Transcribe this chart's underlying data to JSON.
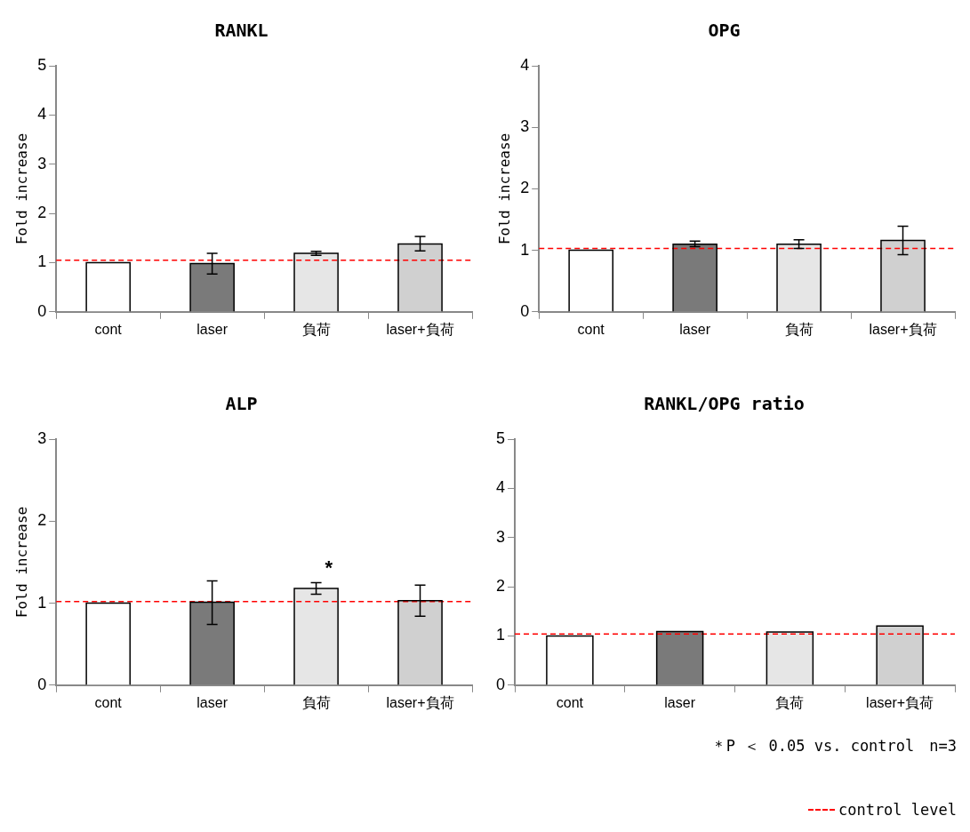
{
  "chart_data": [
    {
      "type": "bar",
      "title": "RANKL",
      "ylabel": "Fold increase",
      "categories": [
        "cont",
        "laser",
        "負荷",
        "laser+負荷"
      ],
      "values": [
        1.0,
        0.98,
        1.19,
        1.38
      ],
      "errors": [
        null,
        [
          0.77,
          1.19
        ],
        [
          1.15,
          1.23
        ],
        [
          1.24,
          1.53
        ]
      ],
      "colors": [
        "#ffffff",
        "#7a7a7a",
        "#e6e6e6",
        "#d0d0d0"
      ],
      "ylim": [
        0,
        5
      ],
      "yticks": [
        0,
        1,
        2,
        3,
        4,
        5
      ],
      "grid": false,
      "legend": false,
      "ref_lines": [
        {
          "axis": "y",
          "value": 1.05,
          "color": "#ff0000",
          "line_style": "dashed"
        }
      ]
    },
    {
      "type": "bar",
      "title": "OPG",
      "ylabel": "Fold increase",
      "categories": [
        "cont",
        "laser",
        "負荷",
        "laser+負荷"
      ],
      "values": [
        1.0,
        1.1,
        1.1,
        1.16
      ],
      "errors": [
        null,
        [
          1.06,
          1.15
        ],
        [
          1.03,
          1.17
        ],
        [
          0.93,
          1.39
        ]
      ],
      "colors": [
        "#ffffff",
        "#7a7a7a",
        "#e6e6e6",
        "#d0d0d0"
      ],
      "ylim": [
        0,
        4
      ],
      "yticks": [
        0,
        1,
        2,
        3,
        4
      ],
      "grid": false,
      "legend": false,
      "ref_lines": [
        {
          "axis": "y",
          "value": 1.03,
          "color": "#ff0000",
          "line_style": "dashed"
        }
      ]
    },
    {
      "type": "bar",
      "title": "ALP",
      "ylabel": "Fold increase",
      "categories": [
        "cont",
        "laser",
        "負荷",
        "laser+負荷"
      ],
      "values": [
        1.0,
        1.01,
        1.18,
        1.03
      ],
      "errors": [
        null,
        [
          0.74,
          1.27
        ],
        [
          1.11,
          1.25
        ],
        [
          0.84,
          1.22
        ]
      ],
      "colors": [
        "#ffffff",
        "#7a7a7a",
        "#e6e6e6",
        "#d0d0d0"
      ],
      "ylim": [
        0,
        3
      ],
      "yticks": [
        0,
        1,
        2,
        3
      ],
      "grid": false,
      "legend": false,
      "ref_lines": [
        {
          "axis": "y",
          "value": 1.02,
          "color": "#ff0000",
          "line_style": "dashed"
        }
      ],
      "annotations": [
        {
          "text": "*",
          "x": "負荷",
          "y": 1.25
        }
      ]
    },
    {
      "type": "bar",
      "title": "RANKL/OPG ratio",
      "categories": [
        "cont",
        "laser",
        "負荷",
        "laser+負荷"
      ],
      "values": [
        1.0,
        1.09,
        1.08,
        1.2
      ],
      "colors": [
        "#ffffff",
        "#7a7a7a",
        "#e6e6e6",
        "#d0d0d0"
      ],
      "ylim": [
        0,
        5
      ],
      "yticks": [
        0,
        1,
        2,
        3,
        4,
        5
      ],
      "grid": false,
      "legend": "bottom right",
      "ref_lines": [
        {
          "axis": "y",
          "value": 1.04,
          "label": "control level",
          "color": "#ff0000",
          "line_style": "dashed"
        }
      ],
      "annotations": [
        "＊P ＜ 0.05 vs. control　n=3"
      ]
    }
  ]
}
